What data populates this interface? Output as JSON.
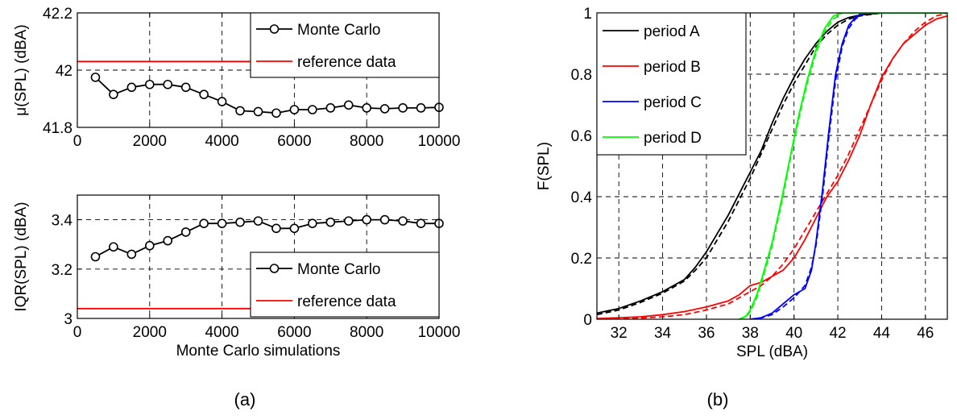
{
  "captions": {
    "a": "(a)",
    "b": "(b)"
  },
  "chart_data": [
    {
      "type": "line",
      "xlabel": "",
      "ylabel": "μ(SPL) (dBA)",
      "xlim": [
        0,
        10000
      ],
      "ylim": [
        41.8,
        42.2
      ],
      "xticks": [
        0,
        2000,
        4000,
        6000,
        8000,
        10000
      ],
      "yticks": [
        41.8,
        42,
        42.2
      ],
      "ytick_labels": [
        "41.8",
        "42",
        "42.2"
      ],
      "grid": true,
      "legend_position": "top-right",
      "series": [
        {
          "name": "Monte Carlo",
          "color": "#000000",
          "marker": "circle",
          "x": [
            500,
            1000,
            1500,
            2000,
            2500,
            3000,
            3500,
            4000,
            4500,
            5000,
            5500,
            6000,
            6500,
            7000,
            7500,
            8000,
            8500,
            9000,
            9500,
            10000
          ],
          "y": [
            41.975,
            41.915,
            41.94,
            41.95,
            41.95,
            41.94,
            41.915,
            41.89,
            41.858,
            41.855,
            41.85,
            41.862,
            41.862,
            41.868,
            41.878,
            41.868,
            41.865,
            41.868,
            41.868,
            41.87
          ]
        },
        {
          "name": "reference data",
          "color": "#ff0000",
          "marker": "none",
          "x": [
            0,
            10000
          ],
          "y": [
            42.03,
            42.03
          ]
        }
      ]
    },
    {
      "type": "line",
      "xlabel": "Monte Carlo simulations",
      "ylabel": "IQR(SPL) (dBA)",
      "xlim": [
        0,
        10000
      ],
      "ylim": [
        3,
        3.5
      ],
      "xticks": [
        0,
        2000,
        4000,
        6000,
        8000,
        10000
      ],
      "yticks": [
        3,
        3.2,
        3.4
      ],
      "ytick_labels": [
        "3",
        "3.2",
        "3.4"
      ],
      "grid": true,
      "legend_position": "bottom-right",
      "series": [
        {
          "name": "Monte Carlo",
          "color": "#000000",
          "marker": "circle",
          "x": [
            500,
            1000,
            1500,
            2000,
            2500,
            3000,
            3500,
            4000,
            4500,
            5000,
            5500,
            6000,
            6500,
            7000,
            7500,
            8000,
            8500,
            9000,
            9500,
            10000
          ],
          "y": [
            3.25,
            3.29,
            3.26,
            3.295,
            3.315,
            3.35,
            3.385,
            3.385,
            3.39,
            3.395,
            3.365,
            3.365,
            3.385,
            3.39,
            3.395,
            3.4,
            3.4,
            3.395,
            3.385,
            3.385
          ]
        },
        {
          "name": "reference data",
          "color": "#ff0000",
          "marker": "none",
          "x": [
            0,
            10000
          ],
          "y": [
            3.04,
            3.04
          ]
        }
      ]
    },
    {
      "type": "line",
      "xlabel": "SPL (dBA)",
      "ylabel": "F(SPL)",
      "xlim": [
        31,
        47
      ],
      "ylim": [
        0,
        1
      ],
      "xticks": [
        32,
        34,
        36,
        38,
        40,
        42,
        44,
        46
      ],
      "yticks": [
        0,
        0.2,
        0.4,
        0.6,
        0.8,
        1
      ],
      "ytick_labels": [
        "0",
        "0.2",
        "0.4",
        "0.6",
        "0.8",
        "1"
      ],
      "grid": true,
      "legend_position": "top-left",
      "series": [
        {
          "name": "period A",
          "color": "#000000",
          "x": [
            31,
            32,
            33,
            34,
            35,
            35.5,
            36,
            36.5,
            37,
            37.5,
            38,
            38.5,
            39,
            39.5,
            40,
            40.5,
            41,
            41.5,
            42,
            42.5,
            43,
            44,
            47
          ],
          "y": [
            0.02,
            0.035,
            0.06,
            0.09,
            0.13,
            0.17,
            0.22,
            0.28,
            0.34,
            0.41,
            0.48,
            0.55,
            0.64,
            0.72,
            0.79,
            0.85,
            0.9,
            0.94,
            0.97,
            0.985,
            0.993,
            1,
            1
          ]
        },
        {
          "name": "",
          "color": "#000000",
          "dashed": true,
          "x": [
            31,
            32,
            33,
            34,
            35,
            35.5,
            36,
            36.5,
            37,
            37.5,
            38,
            38.5,
            39,
            39.5,
            40,
            40.5,
            41,
            41.5,
            42,
            42.5,
            43,
            44,
            47
          ],
          "y": [
            0.015,
            0.03,
            0.055,
            0.085,
            0.125,
            0.16,
            0.2,
            0.26,
            0.32,
            0.39,
            0.46,
            0.54,
            0.62,
            0.7,
            0.77,
            0.83,
            0.89,
            0.93,
            0.96,
            0.98,
            0.99,
            1,
            1
          ]
        },
        {
          "name": "period B",
          "color": "#ff0000",
          "x": [
            31,
            33,
            34,
            35,
            36,
            37,
            37.5,
            38,
            38.5,
            39,
            39.5,
            40,
            40.5,
            41,
            41.5,
            42,
            42.5,
            43,
            43.5,
            44,
            44.5,
            45,
            45.5,
            46,
            46.5,
            47
          ],
          "y": [
            0.002,
            0.008,
            0.015,
            0.025,
            0.04,
            0.06,
            0.08,
            0.11,
            0.12,
            0.14,
            0.16,
            0.2,
            0.26,
            0.33,
            0.4,
            0.45,
            0.52,
            0.6,
            0.7,
            0.79,
            0.85,
            0.9,
            0.93,
            0.96,
            0.98,
            0.99
          ]
        },
        {
          "name": "",
          "color": "#ff0000",
          "dashed": true,
          "x": [
            31,
            33,
            34,
            35,
            36,
            37,
            37.5,
            38,
            38.5,
            39,
            39.5,
            40,
            40.5,
            41,
            41.5,
            42,
            42.5,
            43,
            43.5,
            44,
            44.5,
            45,
            45.5,
            46,
            46.5,
            47
          ],
          "y": [
            0.001,
            0.004,
            0.008,
            0.015,
            0.03,
            0.05,
            0.07,
            0.09,
            0.11,
            0.14,
            0.18,
            0.23,
            0.29,
            0.35,
            0.41,
            0.47,
            0.54,
            0.62,
            0.7,
            0.78,
            0.85,
            0.9,
            0.94,
            0.97,
            0.99,
            1
          ]
        },
        {
          "name": "period C",
          "color": "#0000ff",
          "x": [
            38,
            38.5,
            39,
            39.5,
            40,
            40.5,
            40.8,
            41,
            41.3,
            41.6,
            41.9,
            42.2,
            42.5,
            42.8,
            43,
            43.3,
            44,
            47
          ],
          "y": [
            0,
            0.005,
            0.02,
            0.05,
            0.08,
            0.1,
            0.16,
            0.25,
            0.42,
            0.62,
            0.8,
            0.9,
            0.96,
            0.985,
            0.995,
            1,
            1,
            1
          ]
        },
        {
          "name": "",
          "color": "#0000ff",
          "dashed": true,
          "x": [
            38,
            38.5,
            39,
            39.5,
            40,
            40.5,
            40.8,
            41,
            41.3,
            41.6,
            41.9,
            42.2,
            42.5,
            42.8,
            43,
            43.3,
            44,
            47
          ],
          "y": [
            0,
            0.004,
            0.015,
            0.04,
            0.07,
            0.11,
            0.17,
            0.24,
            0.4,
            0.6,
            0.78,
            0.89,
            0.95,
            0.98,
            0.99,
            1,
            1,
            1
          ]
        },
        {
          "name": "period D",
          "color": "#00ff00",
          "x": [
            37.5,
            37.8,
            38,
            38.3,
            38.6,
            39,
            39.4,
            39.8,
            40.2,
            40.6,
            41,
            41.4,
            41.8,
            42.2,
            42.6,
            47
          ],
          "y": [
            0,
            0.01,
            0.03,
            0.08,
            0.15,
            0.25,
            0.38,
            0.52,
            0.66,
            0.78,
            0.88,
            0.95,
            0.99,
            1,
            1,
            1
          ]
        },
        {
          "name": "",
          "color": "#00ff00",
          "dashed": true,
          "x": [
            37.5,
            37.8,
            38,
            38.3,
            38.6,
            39,
            39.4,
            39.8,
            40.2,
            40.6,
            41,
            41.4,
            41.8,
            42.2,
            42.6,
            47
          ],
          "y": [
            0,
            0.008,
            0.025,
            0.07,
            0.14,
            0.24,
            0.37,
            0.51,
            0.65,
            0.77,
            0.87,
            0.94,
            0.98,
            1,
            1,
            1
          ]
        }
      ]
    }
  ]
}
